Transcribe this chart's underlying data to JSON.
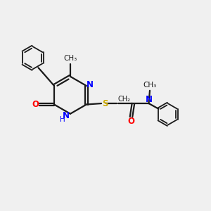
{
  "background_color": "#f0f0f0",
  "bond_color": "#1a1a1a",
  "N_color": "#0000ff",
  "O_color": "#ff0000",
  "S_color": "#ccaa00",
  "figsize": [
    3.0,
    3.0
  ],
  "dpi": 100,
  "xlim": [
    0,
    10
  ],
  "ylim": [
    0,
    10
  ]
}
